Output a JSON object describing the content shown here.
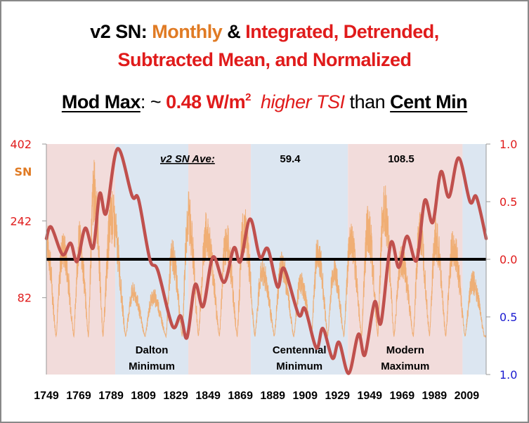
{
  "title": {
    "line1": [
      {
        "text": "v2 SN:  ",
        "cls": "blk"
      },
      {
        "text": "Monthly",
        "cls": "org"
      },
      {
        "text": " & ",
        "cls": "blk"
      },
      {
        "text": "Integrated, Detrended,",
        "cls": "red"
      }
    ],
    "line2": [
      {
        "text": "Subtracted Mean, and Normalized",
        "cls": "red"
      }
    ],
    "line3": {
      "a": "Mod Max",
      "b": ": ~ ",
      "c": "0.48 W/m",
      "c_sup": "2",
      "d": "higher TSI",
      "e": " than ",
      "f": "Cent Min"
    }
  },
  "colors": {
    "integrated": "#c0504d",
    "monthly": "#f0a868",
    "pink_band": "#f2dcdb",
    "blue_band": "#dce6f1",
    "left_axis": "#e01b1b",
    "sn_label": "#e07b24",
    "right_axis_pos": "#e01b1b",
    "right_axis_neg": "#1a1ad0",
    "ave_blue": "#1010d0",
    "ave_orange": "#e07b24"
  },
  "chart_data": {
    "type": "line",
    "title": "v2 SN: Monthly & Integrated, Detrended, Subtracted Mean, and Normalized",
    "xlabel": "",
    "xlim": [
      1749,
      2021
    ],
    "x_ticks": [
      1749,
      1769,
      1789,
      1809,
      1829,
      1849,
      1869,
      1889,
      1909,
      1929,
      1949,
      1969,
      1989,
      2009
    ],
    "left_axis": {
      "label": "SN",
      "ticks": [
        "402",
        "242",
        "82"
      ],
      "tick_values": [
        402,
        242,
        82
      ],
      "ylim": [
        -78,
        402
      ]
    },
    "right_axis": {
      "ticks": [
        "1.0",
        "0.5",
        "0.0",
        "0.5",
        "1.0"
      ],
      "tick_values": [
        1.0,
        0.5,
        0.0,
        -0.5,
        -1.0
      ],
      "ylim": [
        -1.0,
        1.0
      ]
    },
    "zero_line": 0.0,
    "bands": [
      {
        "from": 1749,
        "to": 1791.6,
        "type": "pink"
      },
      {
        "from": 1791.6,
        "to": 1836.8,
        "type": "blue",
        "label": [
          "Dalton",
          "Minimum"
        ]
      },
      {
        "from": 1836.8,
        "to": 1875.5,
        "type": "pink"
      },
      {
        "from": 1875.5,
        "to": 1935.5,
        "type": "blue",
        "label": [
          "Centennial",
          "Minimum"
        ]
      },
      {
        "from": 1935.5,
        "to": 2006.4,
        "type": "pink",
        "label": [
          "Modern",
          "Maximum"
        ]
      },
      {
        "from": 2006.4,
        "to": 2021,
        "type": "blue"
      }
    ],
    "annotations": {
      "ave_label": "v2 SN Ave:",
      "ave_centennial": "59.4",
      "ave_modern": "108.5"
    },
    "series": [
      {
        "name": "Integrated, Detrended, Subtracted Mean, Normalized",
        "axis": "right",
        "x": [
          1749,
          1752,
          1759,
          1764,
          1768,
          1773,
          1778,
          1782,
          1786,
          1793,
          1802,
          1806,
          1813,
          1818,
          1827,
          1832,
          1836,
          1841,
          1846,
          1852,
          1859,
          1865,
          1869,
          1875,
          1881,
          1886,
          1892,
          1896,
          1905,
          1909,
          1916,
          1920,
          1926,
          1930,
          1936,
          1942,
          1946,
          1952,
          1956,
          1962,
          1967,
          1972,
          1978,
          1983,
          1988,
          1993,
          1998,
          2004,
          2011,
          2015,
          2021
        ],
        "values": [
          0.18,
          0.28,
          0.04,
          0.14,
          -0.02,
          0.27,
          0.1,
          0.57,
          0.4,
          0.96,
          0.55,
          0.52,
          0.0,
          -0.1,
          -0.58,
          -0.49,
          -0.68,
          -0.22,
          -0.41,
          0.02,
          -0.2,
          0.1,
          -0.02,
          0.35,
          0.02,
          0.09,
          -0.24,
          -0.08,
          -0.48,
          -0.43,
          -0.77,
          -0.6,
          -0.86,
          -0.72,
          -0.99,
          -0.65,
          -0.83,
          -0.37,
          -0.55,
          0.14,
          -0.07,
          0.2,
          -0.01,
          0.51,
          0.32,
          0.76,
          0.54,
          0.88,
          0.5,
          0.54,
          0.18
        ]
      },
      {
        "name": "Monthly SN (v2)",
        "axis": "left",
        "cycle_minima": [
          1745,
          1755,
          1766,
          1775,
          1784,
          1798,
          1810,
          1823,
          1833,
          1843,
          1856,
          1867,
          1878,
          1890,
          1902,
          1913,
          1923,
          1933,
          1944,
          1954,
          1964,
          1976,
          1986,
          1996,
          2008,
          2020
        ],
        "cycle_peaks": [
          265,
          240,
          260,
          400,
          330,
          120,
          110,
          220,
          330,
          280,
          260,
          300,
          180,
          190,
          150,
          230,
          180,
          260,
          300,
          360,
          210,
          280,
          270,
          250,
          150
        ]
      }
    ]
  }
}
